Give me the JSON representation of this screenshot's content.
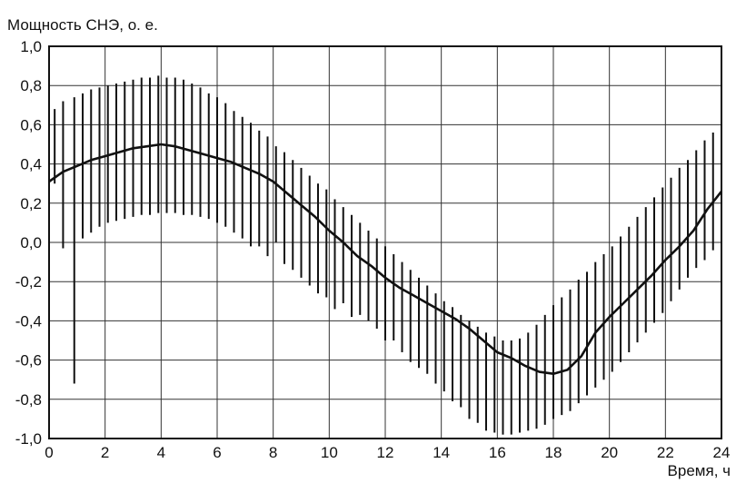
{
  "chart_data": {
    "type": "line",
    "ylabel": "Мощность СНЭ, о. е.",
    "xlabel": "Время, ч",
    "xlim": [
      0,
      24
    ],
    "ylim": [
      -1.0,
      1.0
    ],
    "grid": true,
    "x_ticks": [
      0,
      2,
      4,
      6,
      8,
      10,
      12,
      14,
      16,
      18,
      20,
      22,
      24
    ],
    "x_tick_labels": [
      "0",
      "2",
      "4",
      "6",
      "8",
      "10",
      "12",
      "14",
      "16",
      "18",
      "20",
      "22",
      "24"
    ],
    "y_ticks": [
      1.0,
      0.8,
      0.6,
      0.4,
      0.2,
      0.0,
      -0.2,
      -0.4,
      -0.6,
      -0.8,
      -1.0
    ],
    "y_tick_labels": [
      "1,0",
      "0,8",
      "0,6",
      "0,4",
      "0,2",
      "0,0",
      "-0,2",
      "-0,4",
      "-0,6",
      "-0,8",
      "-1,0"
    ],
    "series": [
      {
        "style": "thick-line",
        "x": [
          0,
          0.5,
          1,
          1.5,
          2,
          2.5,
          3,
          3.5,
          4,
          4.5,
          5,
          5.5,
          6,
          6.5,
          7,
          7.5,
          8,
          8.5,
          9,
          9.5,
          10,
          10.5,
          11,
          11.5,
          12,
          12.5,
          13,
          13.5,
          14,
          14.5,
          15,
          15.5,
          16,
          16.5,
          17,
          17.5,
          18,
          18.5,
          19,
          19.5,
          20,
          20.5,
          21,
          21.5,
          22,
          22.5,
          23,
          23.5,
          24
        ],
        "y": [
          0.31,
          0.36,
          0.39,
          0.42,
          0.44,
          0.46,
          0.48,
          0.49,
          0.5,
          0.49,
          0.47,
          0.45,
          0.43,
          0.41,
          0.38,
          0.35,
          0.31,
          0.25,
          0.19,
          0.13,
          0.06,
          0.0,
          -0.07,
          -0.12,
          -0.18,
          -0.23,
          -0.27,
          -0.31,
          -0.35,
          -0.39,
          -0.44,
          -0.5,
          -0.56,
          -0.59,
          -0.63,
          -0.66,
          -0.67,
          -0.65,
          -0.58,
          -0.46,
          -0.38,
          -0.31,
          -0.24,
          -0.17,
          -0.09,
          -0.02,
          0.06,
          0.17,
          0.26
        ]
      },
      {
        "style": "vertical-spikes",
        "x": [
          0.2,
          0.5,
          0.9,
          1.2,
          1.5,
          1.8,
          2.1,
          2.4,
          2.7,
          3.0,
          3.3,
          3.6,
          3.9,
          4.2,
          4.5,
          4.8,
          5.1,
          5.4,
          5.7,
          6.0,
          6.3,
          6.6,
          6.9,
          7.2,
          7.5,
          7.8,
          8.1,
          8.4,
          8.7,
          9.0,
          9.3,
          9.6,
          9.9,
          10.2,
          10.5,
          10.8,
          11.1,
          11.4,
          11.7,
          12.0,
          12.3,
          12.6,
          12.9,
          13.2,
          13.5,
          13.8,
          14.1,
          14.4,
          14.7,
          15.0,
          15.3,
          15.6,
          15.9,
          16.2,
          16.5,
          16.8,
          17.1,
          17.4,
          17.7,
          18.0,
          18.3,
          18.6,
          18.9,
          19.2,
          19.5,
          19.8,
          20.1,
          20.4,
          20.7,
          21.0,
          21.3,
          21.6,
          21.9,
          22.2,
          22.5,
          22.8,
          23.1,
          23.4,
          23.7
        ],
        "ymin": [
          0.3,
          -0.03,
          -0.72,
          0.02,
          0.05,
          0.08,
          0.1,
          0.11,
          0.12,
          0.13,
          0.14,
          0.14,
          0.15,
          0.15,
          0.15,
          0.14,
          0.14,
          0.13,
          0.12,
          0.1,
          0.08,
          0.05,
          0.02,
          -0.02,
          -0.02,
          -0.07,
          0.0,
          -0.11,
          -0.14,
          -0.18,
          -0.22,
          -0.26,
          -0.28,
          -0.34,
          -0.31,
          -0.38,
          -0.37,
          -0.4,
          -0.44,
          -0.5,
          -0.5,
          -0.56,
          -0.61,
          -0.64,
          -0.67,
          -0.72,
          -0.76,
          -0.81,
          -0.84,
          -0.9,
          -0.92,
          -0.96,
          -0.97,
          -0.98,
          -0.98,
          -0.97,
          -0.96,
          -0.95,
          -0.93,
          -0.9,
          -0.88,
          -0.86,
          -0.82,
          -0.78,
          -0.74,
          -0.7,
          -0.66,
          -0.61,
          -0.56,
          -0.51,
          -0.46,
          -0.41,
          -0.36,
          -0.3,
          -0.24,
          -0.18,
          -0.13,
          -0.09,
          -0.04
        ],
        "ymax": [
          0.68,
          0.72,
          0.74,
          0.76,
          0.78,
          0.79,
          0.8,
          0.81,
          0.82,
          0.83,
          0.84,
          0.84,
          0.85,
          0.84,
          0.84,
          0.83,
          0.81,
          0.79,
          0.76,
          0.74,
          0.71,
          0.67,
          0.64,
          0.61,
          0.57,
          0.54,
          0.49,
          0.46,
          0.42,
          0.38,
          0.34,
          0.3,
          0.27,
          0.22,
          0.18,
          0.14,
          0.1,
          0.06,
          0.02,
          -0.02,
          -0.06,
          -0.1,
          -0.14,
          -0.18,
          -0.22,
          -0.26,
          -0.3,
          -0.33,
          -0.37,
          -0.4,
          -0.43,
          -0.46,
          -0.48,
          -0.5,
          -0.5,
          -0.49,
          -0.46,
          -0.42,
          -0.37,
          -0.32,
          -0.28,
          -0.24,
          -0.19,
          -0.15,
          -0.1,
          -0.06,
          -0.02,
          0.03,
          0.08,
          0.13,
          0.18,
          0.23,
          0.28,
          0.33,
          0.38,
          0.42,
          0.47,
          0.52,
          0.56
        ]
      }
    ]
  }
}
